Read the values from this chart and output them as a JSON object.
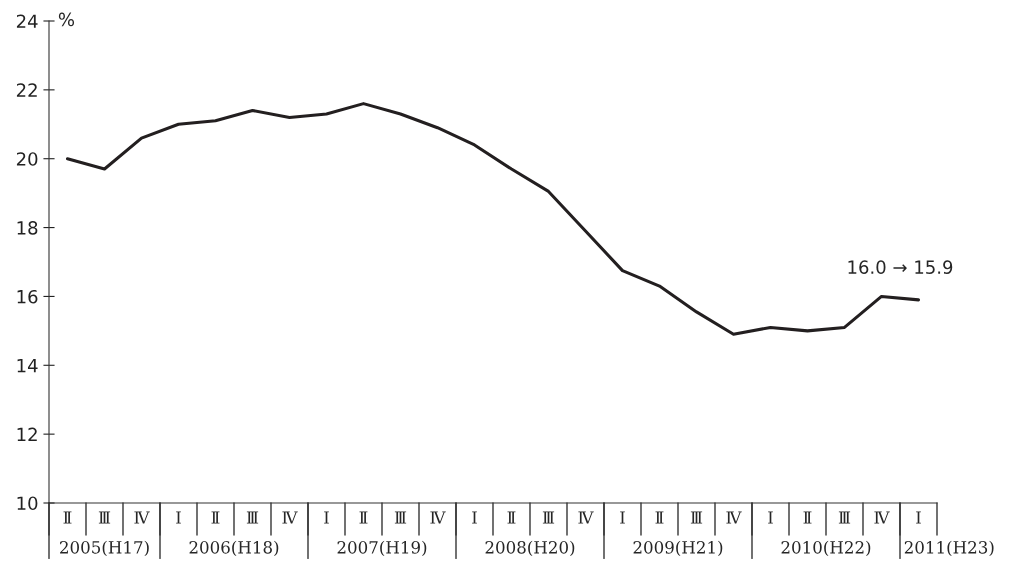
{
  "chart_data": {
    "type": "line",
    "categories": [
      "Ⅱ",
      "Ⅲ",
      "Ⅳ",
      "Ⅰ",
      "Ⅱ",
      "Ⅲ",
      "Ⅳ",
      "Ⅰ",
      "Ⅱ",
      "Ⅲ",
      "Ⅳ",
      "Ⅰ",
      "Ⅱ",
      "Ⅲ",
      "Ⅳ",
      "Ⅰ",
      "Ⅱ",
      "Ⅲ",
      "Ⅳ",
      "Ⅰ",
      "Ⅱ",
      "Ⅲ",
      "Ⅳ",
      "Ⅰ"
    ],
    "series": [
      {
        "color": "#231f20",
        "values": [
          20.0,
          19.7,
          20.6,
          21.0,
          21.1,
          21.4,
          21.2,
          21.3,
          21.6,
          21.3,
          20.9,
          20.4,
          19.7,
          19.05,
          17.9,
          16.75,
          16.3,
          15.55,
          14.9,
          15.1,
          15.0,
          15.1,
          16.0,
          15.9
        ]
      }
    ],
    "ylabel": "%",
    "ylim": [
      10,
      24
    ],
    "yticks": [
      10,
      12,
      14,
      16,
      18,
      20,
      22,
      24
    ],
    "annotations": [
      "16.0 → 15.9",
      "2005(H17)",
      "2006(H18)",
      "2007(H19)",
      "2008(H20)",
      "2009(H21)",
      "2010(H22)",
      "2011(H23)"
    ],
    "grid": false,
    "legend": false,
    "marker": "none",
    "line_style": "solid"
  }
}
